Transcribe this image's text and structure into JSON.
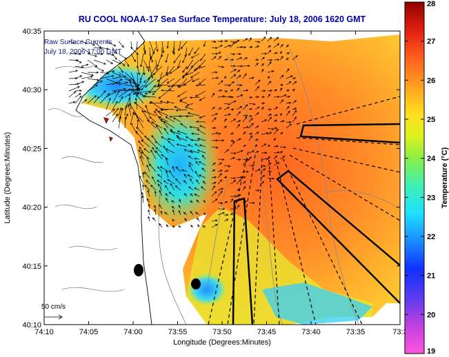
{
  "title": "RU COOL  NOAA-17  Sea Surface Temperature:  July 18, 2006 1620 GMT",
  "overlay": {
    "line1": "Raw Surface Currents",
    "line2": "July 18, 2006 17:00 GMT"
  },
  "scale": {
    "label": "50 cm/s",
    "value_cm_s": 50
  },
  "xaxis": {
    "label": "Longitude (Degrees:Minutes)",
    "ticks": [
      "74:10",
      "74:05",
      "74:00",
      "73:55",
      "73:50",
      "73:45",
      "73:40",
      "73:35",
      "73:3"
    ]
  },
  "yaxis": {
    "label": "Latitude (Degrees:Minutes)",
    "ticks": [
      "40:35",
      "40:30",
      "40:25",
      "40:20",
      "40:15",
      "40:10"
    ]
  },
  "colorbar": {
    "label": "Temperature (°C)",
    "ticks": [
      "28",
      "27",
      "26",
      "25",
      "24",
      "23",
      "22",
      "21",
      "20",
      "19"
    ],
    "min": 19,
    "max": 28
  },
  "colors": {
    "title": "#0000aa",
    "overlay_text": "#1a1a8c",
    "land": "#ffffff",
    "warm": "#f05a1e",
    "cool": "#1ec8ff"
  }
}
